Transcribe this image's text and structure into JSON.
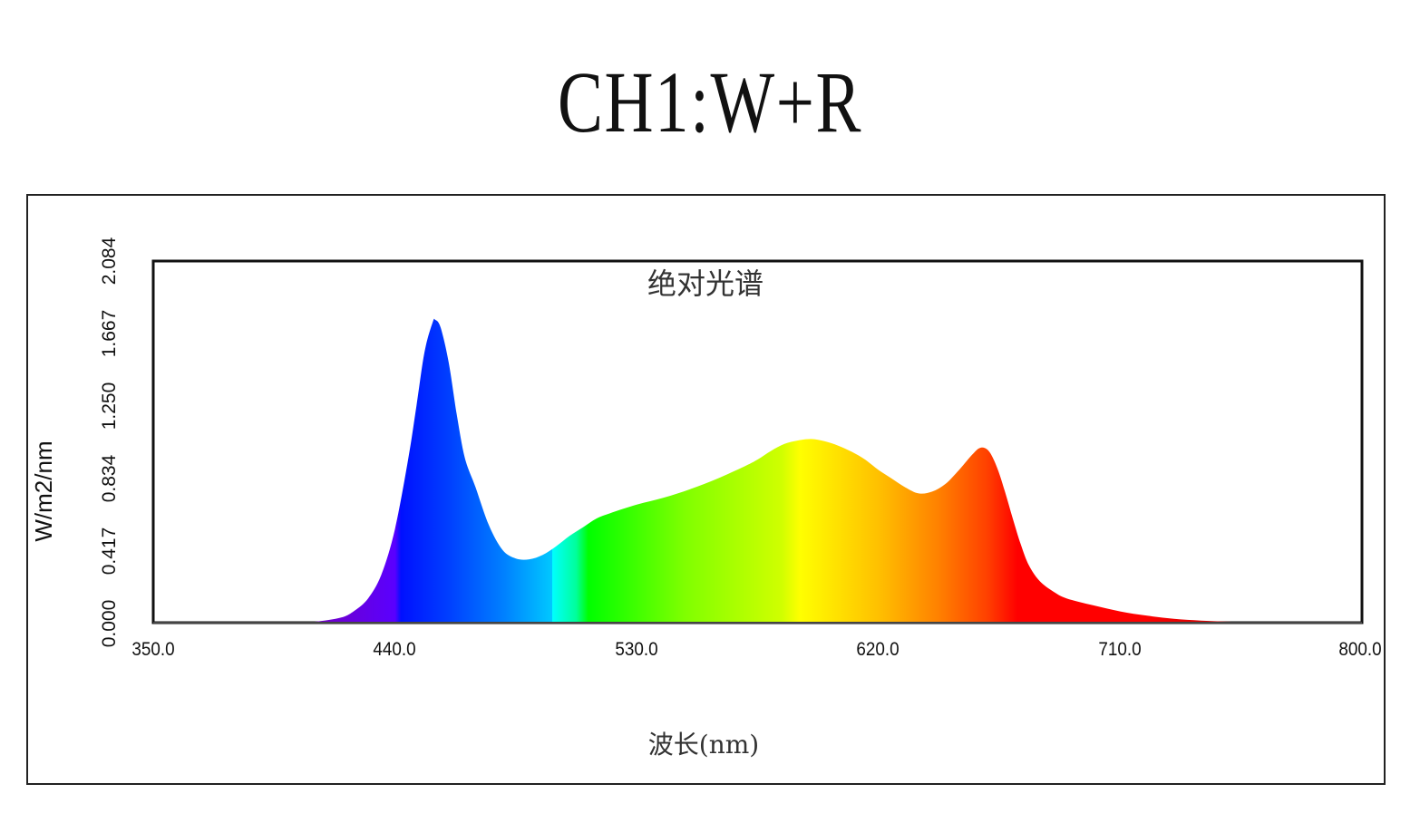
{
  "page": {
    "title": "CH1:W+R"
  },
  "chart_data": {
    "type": "area",
    "title": "绝对光谱",
    "xlabel": "波长(nm)",
    "ylabel": "W/m2/nm",
    "xlim": [
      350.0,
      800.0
    ],
    "ylim": [
      0.0,
      2.084
    ],
    "x_ticks": [
      "350.0",
      "440.0",
      "530.0",
      "620.0",
      "710.0",
      "800.0"
    ],
    "y_ticks": [
      "0.000",
      "0.417",
      "0.834",
      "1.250",
      "1.667",
      "2.084"
    ],
    "grid": false,
    "fill": "visible-spectrum gradient",
    "x": [
      350,
      400,
      410,
      420,
      425,
      430,
      435,
      440,
      445,
      448,
      451,
      454,
      455,
      457,
      460,
      463,
      466,
      470,
      475,
      480,
      485,
      490,
      495,
      500,
      505,
      510,
      515,
      520,
      530,
      540,
      550,
      560,
      570,
      575,
      580,
      585,
      590,
      595,
      600,
      605,
      610,
      615,
      620,
      625,
      630,
      635,
      640,
      645,
      650,
      655,
      658,
      661,
      664,
      667,
      670,
      673,
      676,
      680,
      685,
      690,
      700,
      710,
      720,
      730,
      740,
      750,
      760,
      780,
      800
    ],
    "values": [
      0.0,
      0.0,
      0.005,
      0.03,
      0.07,
      0.14,
      0.28,
      0.54,
      0.95,
      1.25,
      1.56,
      1.73,
      1.745,
      1.7,
      1.5,
      1.2,
      0.95,
      0.78,
      0.56,
      0.42,
      0.37,
      0.365,
      0.39,
      0.44,
      0.5,
      0.55,
      0.6,
      0.63,
      0.68,
      0.72,
      0.77,
      0.83,
      0.9,
      0.94,
      0.99,
      1.03,
      1.05,
      1.058,
      1.045,
      1.02,
      0.985,
      0.94,
      0.88,
      0.83,
      0.78,
      0.745,
      0.755,
      0.8,
      0.88,
      0.97,
      1.008,
      0.99,
      0.9,
      0.76,
      0.6,
      0.45,
      0.33,
      0.24,
      0.18,
      0.14,
      0.1,
      0.065,
      0.04,
      0.022,
      0.012,
      0.006,
      0.002,
      0.0,
      0.0
    ]
  }
}
